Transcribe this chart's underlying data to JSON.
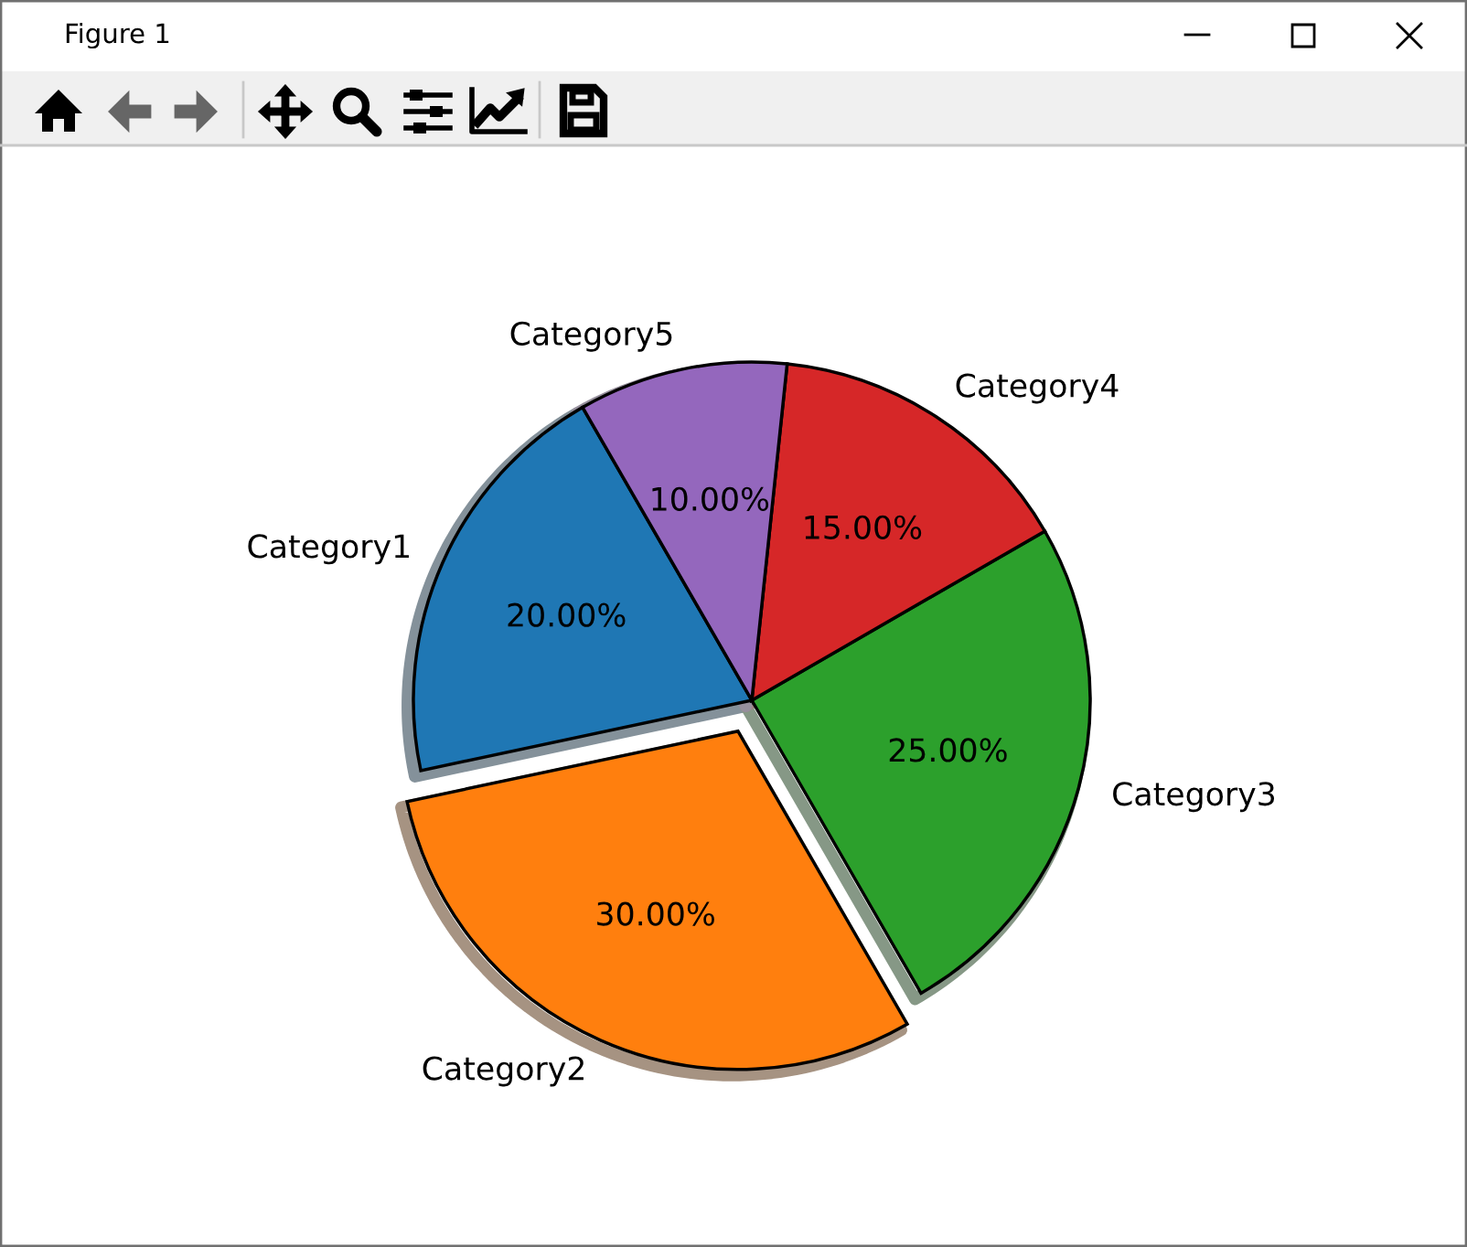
{
  "chart_data": {
    "type": "pie",
    "title": "Figure 1",
    "categories": [
      "Category1",
      "Category2",
      "Category3",
      "Category4",
      "Category5"
    ],
    "values": [
      20,
      30,
      25,
      15,
      10
    ],
    "colors": [
      "#1f77b4",
      "#ff7f0e",
      "#2ca02c",
      "#d62728",
      "#9467bd"
    ],
    "value_labels": [
      "20.00%",
      "30.00%",
      "25.00%",
      "15.00%",
      "10.00%"
    ]
  }
}
